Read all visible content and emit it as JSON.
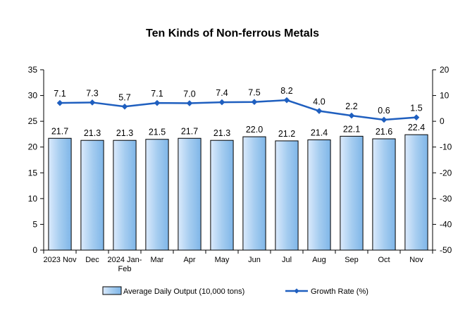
{
  "chart_data": {
    "type": "bar",
    "title": "Ten Kinds of Non-ferrous Metals",
    "categories": [
      [
        "2023 Nov"
      ],
      [
        "Dec"
      ],
      [
        "2024 Jan-",
        "Feb"
      ],
      [
        "Mar"
      ],
      [
        "Apr"
      ],
      [
        "May"
      ],
      [
        "Jun"
      ],
      [
        "Jul"
      ],
      [
        "Aug"
      ],
      [
        "Sep"
      ],
      [
        "Oct"
      ],
      [
        "Nov"
      ]
    ],
    "series": [
      {
        "name": "Average Daily Output (10,000 tons)",
        "type": "bar",
        "axis": "left",
        "values": [
          21.7,
          21.3,
          21.3,
          21.5,
          21.7,
          21.3,
          22.0,
          21.2,
          21.4,
          22.1,
          21.6,
          22.4
        ]
      },
      {
        "name": "Growth Rate (%)",
        "type": "line",
        "axis": "right",
        "values": [
          7.1,
          7.3,
          5.7,
          7.1,
          7.0,
          7.4,
          7.5,
          8.2,
          4.0,
          2.2,
          0.6,
          1.5
        ]
      }
    ],
    "ylim_left": [
      0,
      35
    ],
    "yticks_left": [
      0,
      5,
      10,
      15,
      20,
      25,
      30,
      35
    ],
    "ylim_right": [
      -50,
      20
    ],
    "yticks_right": [
      -50,
      -40,
      -30,
      -20,
      -10,
      0,
      10,
      20
    ],
    "grid": false,
    "legend": "bottom",
    "colors": {
      "bar_fill_top": "#dbeafc",
      "bar_fill_mid": "#a6cdf0",
      "bar_fill_bottom": "#7fb6e8",
      "bar_stroke": "#000000",
      "line": "#1f5fbf"
    }
  }
}
